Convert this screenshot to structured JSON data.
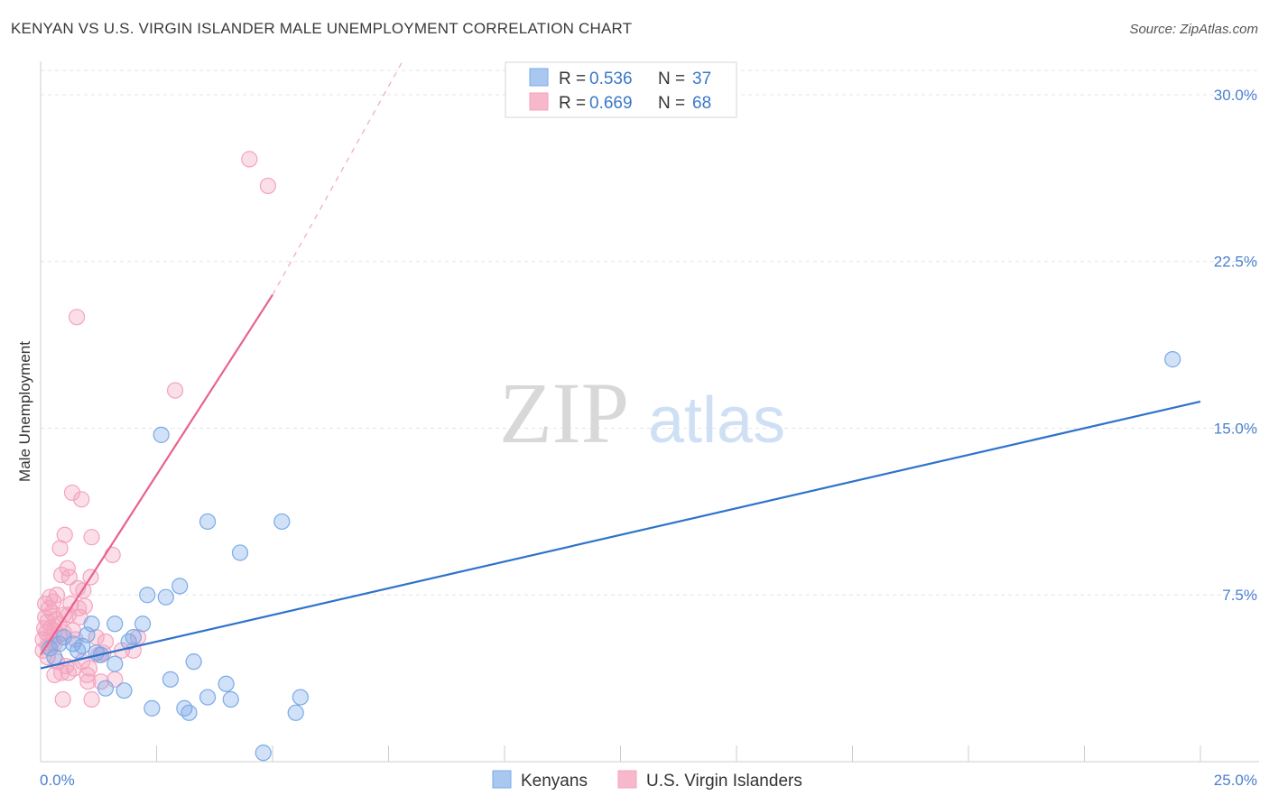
{
  "header": {
    "title": "KENYAN VS U.S. VIRGIN ISLANDER MALE UNEMPLOYMENT CORRELATION CHART",
    "source": "Source: ZipAtlas.com"
  },
  "watermark": {
    "zip": "ZIP",
    "atlas": "atlas"
  },
  "chart_data": {
    "type": "scatter",
    "title": "KENYAN VS U.S. VIRGIN ISLANDER MALE UNEMPLOYMENT CORRELATION CHART",
    "xlabel": "",
    "ylabel": "Male Unemployment",
    "xlim": [
      0,
      25
    ],
    "ylim": [
      0,
      31.5
    ],
    "x_tick_labels": [
      "0.0%",
      "25.0%"
    ],
    "y_ticks": [
      7.5,
      15.0,
      22.5,
      30.0
    ],
    "y_tick_labels": [
      "7.5%",
      "15.0%",
      "22.5%",
      "30.0%"
    ],
    "grid": true,
    "legend_top": [
      {
        "r_label": "R = ",
        "r_value": "0.536",
        "n_label": "N = ",
        "n_value": "37",
        "color": "#a8c8f0"
      },
      {
        "r_label": "R = ",
        "r_value": "0.669",
        "n_label": "N = ",
        "n_value": "68",
        "color": "#f8b8cc"
      }
    ],
    "series": [
      {
        "name": "Kenyans",
        "color": "#7aaae8",
        "line_color": "#2f72cc",
        "trend": {
          "x0": 0.0,
          "y0": 4.2,
          "x1": 25.0,
          "y1": 16.2
        },
        "points": [
          [
            0.2,
            5.1
          ],
          [
            0.3,
            4.7
          ],
          [
            0.4,
            5.3
          ],
          [
            0.5,
            5.6
          ],
          [
            0.7,
            5.3
          ],
          [
            0.8,
            5.0
          ],
          [
            1.0,
            5.7
          ],
          [
            1.1,
            6.2
          ],
          [
            1.3,
            4.8
          ],
          [
            1.4,
            3.3
          ],
          [
            1.6,
            4.4
          ],
          [
            1.6,
            6.2
          ],
          [
            1.8,
            3.2
          ],
          [
            1.9,
            5.4
          ],
          [
            2.0,
            5.6
          ],
          [
            2.2,
            6.2
          ],
          [
            2.3,
            7.5
          ],
          [
            2.4,
            2.4
          ],
          [
            2.6,
            14.7
          ],
          [
            2.7,
            7.4
          ],
          [
            2.8,
            3.7
          ],
          [
            3.0,
            7.9
          ],
          [
            3.1,
            2.4
          ],
          [
            3.2,
            2.2
          ],
          [
            3.3,
            4.5
          ],
          [
            3.6,
            2.9
          ],
          [
            3.6,
            10.8
          ],
          [
            4.0,
            3.5
          ],
          [
            4.1,
            2.8
          ],
          [
            4.3,
            9.4
          ],
          [
            4.8,
            0.4
          ],
          [
            5.2,
            10.8
          ],
          [
            5.5,
            2.2
          ],
          [
            5.6,
            2.9
          ],
          [
            24.4,
            18.1
          ],
          [
            0.9,
            5.2
          ],
          [
            1.2,
            4.9
          ]
        ]
      },
      {
        "name": "U.S. Virgin Islanders",
        "color": "#f4a3bd",
        "line_color": "#e8628c",
        "trend": {
          "x0": 0.0,
          "y0": 4.8,
          "x1": 5.0,
          "y1": 21.0
        },
        "trend_ext": {
          "x0": 5.0,
          "y0": 21.0,
          "x1": 7.8,
          "y1": 31.5
        },
        "points": [
          [
            0.05,
            5.0
          ],
          [
            0.05,
            5.5
          ],
          [
            0.08,
            6.0
          ],
          [
            0.1,
            6.5
          ],
          [
            0.1,
            7.1
          ],
          [
            0.12,
            5.8
          ],
          [
            0.15,
            6.3
          ],
          [
            0.15,
            5.2
          ],
          [
            0.18,
            6.9
          ],
          [
            0.2,
            5.6
          ],
          [
            0.2,
            7.4
          ],
          [
            0.22,
            6.0
          ],
          [
            0.25,
            5.4
          ],
          [
            0.25,
            6.7
          ],
          [
            0.28,
            7.2
          ],
          [
            0.3,
            5.9
          ],
          [
            0.3,
            5.3
          ],
          [
            0.32,
            6.4
          ],
          [
            0.35,
            7.5
          ],
          [
            0.35,
            4.5
          ],
          [
            0.4,
            5.7
          ],
          [
            0.4,
            6.2
          ],
          [
            0.42,
            9.6
          ],
          [
            0.45,
            8.4
          ],
          [
            0.45,
            4.0
          ],
          [
            0.48,
            2.8
          ],
          [
            0.5,
            6.6
          ],
          [
            0.5,
            5.8
          ],
          [
            0.52,
            10.2
          ],
          [
            0.55,
            4.3
          ],
          [
            0.58,
            8.7
          ],
          [
            0.6,
            6.6
          ],
          [
            0.62,
            8.3
          ],
          [
            0.65,
            7.1
          ],
          [
            0.68,
            12.1
          ],
          [
            0.7,
            5.9
          ],
          [
            0.72,
            4.2
          ],
          [
            0.75,
            5.5
          ],
          [
            0.78,
            20.0
          ],
          [
            0.8,
            7.8
          ],
          [
            0.82,
            6.9
          ],
          [
            0.85,
            6.5
          ],
          [
            0.88,
            11.8
          ],
          [
            0.9,
            4.5
          ],
          [
            0.92,
            7.7
          ],
          [
            0.95,
            7.0
          ],
          [
            1.0,
            3.9
          ],
          [
            1.02,
            3.6
          ],
          [
            1.05,
            4.2
          ],
          [
            1.08,
            8.3
          ],
          [
            1.1,
            10.1
          ],
          [
            1.1,
            2.8
          ],
          [
            1.2,
            5.6
          ],
          [
            1.3,
            3.6
          ],
          [
            1.35,
            4.9
          ],
          [
            1.4,
            5.4
          ],
          [
            1.55,
            9.3
          ],
          [
            1.6,
            3.7
          ],
          [
            1.75,
            5.0
          ],
          [
            2.0,
            5.0
          ],
          [
            2.1,
            5.6
          ],
          [
            2.9,
            16.7
          ],
          [
            4.5,
            27.1
          ],
          [
            4.9,
            25.9
          ],
          [
            0.15,
            4.7
          ],
          [
            0.6,
            4.0
          ],
          [
            1.25,
            4.8
          ],
          [
            0.3,
            3.9
          ]
        ]
      }
    ]
  }
}
